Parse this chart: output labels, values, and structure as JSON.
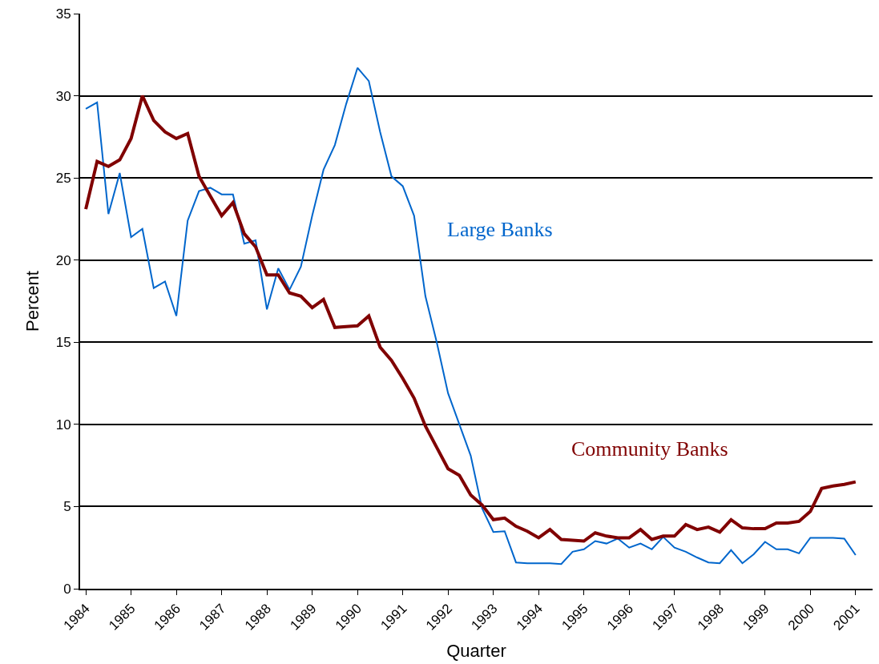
{
  "chart_data": {
    "type": "line",
    "xlabel": "Quarter",
    "ylabel": "Percent",
    "x": [
      1984,
      1984.25,
      1984.5,
      1984.75,
      1985,
      1985.25,
      1985.5,
      1985.75,
      1986,
      1986.25,
      1986.5,
      1986.75,
      1987,
      1987.25,
      1987.5,
      1987.75,
      1988,
      1988.25,
      1988.5,
      1988.75,
      1989,
      1989.25,
      1989.5,
      1989.75,
      1990,
      1990.25,
      1990.5,
      1990.75,
      1991,
      1991.25,
      1991.5,
      1991.75,
      1992,
      1992.25,
      1992.5,
      1992.75,
      1993,
      1993.25,
      1993.5,
      1993.75,
      1994,
      1994.25,
      1994.5,
      1994.75,
      1995,
      1995.25,
      1995.5,
      1995.75,
      1996,
      1996.25,
      1996.5,
      1996.75,
      1997,
      1997.25,
      1997.5,
      1997.75,
      1998,
      1998.25,
      1998.5,
      1998.75,
      1999,
      1999.25,
      1999.5,
      1999.75,
      2000,
      2000.25,
      2000.5,
      2000.75,
      2001
    ],
    "series": [
      {
        "name": "Large Banks",
        "color": "#0066cc",
        "values": [
          29.2,
          29.6,
          22.8,
          25.3,
          21.4,
          21.9,
          18.3,
          18.7,
          16.6,
          22.4,
          24.2,
          24.4,
          24.0,
          24.0,
          21.0,
          21.2,
          17.0,
          19.5,
          18.2,
          19.6,
          22.7,
          25.5,
          27.0,
          29.5,
          31.7,
          30.9,
          27.8,
          25.1,
          24.5,
          22.7,
          17.8,
          15.0,
          11.9,
          10.0,
          8.1,
          4.9,
          3.45,
          3.5,
          1.6,
          1.55,
          1.55,
          1.55,
          1.5,
          2.25,
          2.4,
          2.9,
          2.75,
          3.05,
          2.5,
          2.75,
          2.4,
          3.15,
          2.5,
          2.25,
          1.9,
          1.6,
          1.55,
          2.35,
          1.55,
          2.1,
          2.85,
          2.4,
          2.4,
          2.15,
          3.1,
          3.1,
          3.1,
          3.05,
          2.05
        ]
      },
      {
        "name": "Community Banks",
        "color": "#800000",
        "values": [
          23.1,
          26.0,
          25.7,
          26.1,
          27.4,
          30.0,
          28.5,
          27.8,
          27.4,
          27.7,
          25.1,
          23.9,
          22.7,
          23.5,
          21.6,
          20.8,
          19.1,
          19.1,
          18.0,
          17.8,
          17.1,
          17.6,
          15.9,
          15.95,
          16.0,
          16.6,
          14.7,
          13.9,
          12.8,
          11.6,
          9.9,
          8.6,
          7.3,
          6.9,
          5.7,
          5.1,
          4.2,
          4.3,
          3.8,
          3.5,
          3.1,
          3.6,
          3.0,
          2.95,
          2.9,
          3.4,
          3.2,
          3.1,
          3.1,
          3.6,
          3.0,
          3.2,
          3.2,
          3.9,
          3.6,
          3.75,
          3.45,
          4.2,
          3.7,
          3.65,
          3.65,
          4.0,
          4.0,
          4.1,
          4.7,
          6.1,
          6.25,
          6.35,
          6.5
        ]
      }
    ],
    "xlim": [
      1983.875,
      2001.375
    ],
    "xticks": [
      1984,
      1985,
      1986,
      1987,
      1988,
      1989,
      1990,
      1991,
      1992,
      1993,
      1994,
      1995,
      1996,
      1997,
      1998,
      1999,
      2000,
      2001
    ],
    "ylim": [
      0,
      35
    ],
    "yticks": [
      0,
      5,
      10,
      15,
      20,
      25,
      30,
      35
    ],
    "grid": "y",
    "legend": false,
    "marker": "none",
    "line_style": "solid"
  }
}
